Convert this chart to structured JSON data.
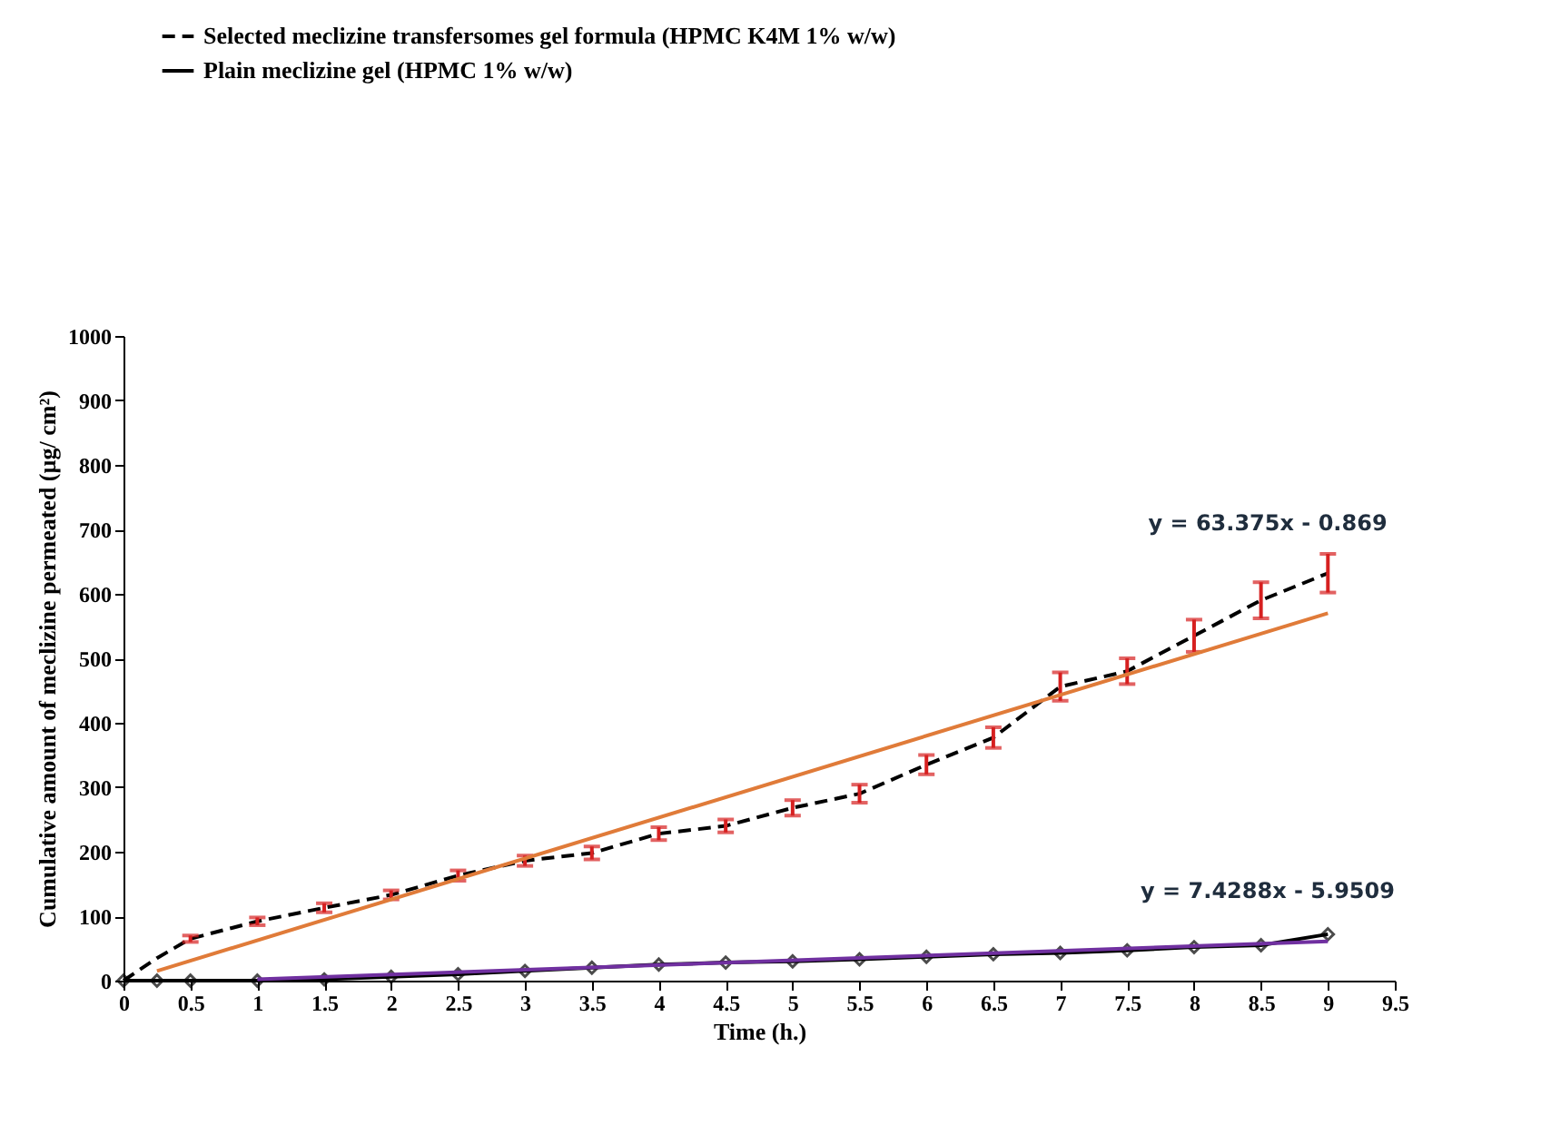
{
  "chart_data": {
    "type": "line",
    "xlabel": "Time (h.)",
    "ylabel": "Cumulative amount of meclizine permeated (µg/ cm²)",
    "x": [
      0,
      0.25,
      0.5,
      1,
      1.5,
      2,
      2.5,
      3,
      3.5,
      4,
      4.5,
      5,
      5.5,
      6,
      6.5,
      7,
      7.5,
      8,
      8.5,
      9
    ],
    "series": [
      {
        "name": "Selected meclizine transfersomes gel formula  (HPMC K4M 1% w/w)",
        "color": "#000000",
        "line_style": "dashed",
        "marker": "none",
        "values": [
          0,
          35,
          65,
          92,
          113,
          133,
          163,
          186,
          198,
          228,
          240,
          268,
          290,
          335,
          377,
          456,
          480,
          535,
          590,
          632
        ],
        "errors": [
          null,
          null,
          5,
          6,
          7,
          7,
          8,
          8,
          10,
          10,
          10,
          12,
          14,
          15,
          16,
          22,
          20,
          25,
          28,
          30
        ]
      },
      {
        "name": "Plain meclizine gel (HPMC 1% w/w)",
        "color": "#000000",
        "line_style": "solid",
        "marker": "diamond",
        "values": [
          0,
          0,
          0,
          0,
          2,
          6,
          10,
          15,
          20,
          25,
          28,
          30,
          33,
          37,
          41,
          43,
          47,
          52,
          55,
          72
        ]
      },
      {
        "type": "line",
        "color": "#e07b39",
        "line_style": "solid",
        "marker": "none",
        "x": [
          0.25,
          9
        ],
        "values": [
          15,
          570
        ]
      },
      {
        "type": "line",
        "color": "#7030a0",
        "line_style": "solid",
        "marker": "none",
        "x": [
          1,
          9
        ],
        "values": [
          2,
          61
        ]
      }
    ],
    "xlim": [
      0,
      9.5
    ],
    "xticks": [
      0,
      0.5,
      1,
      1.5,
      2,
      2.5,
      3,
      3.5,
      4,
      4.5,
      5,
      5.5,
      6,
      6.5,
      7,
      7.5,
      8,
      8.5,
      9,
      9.5
    ],
    "ylim": [
      0,
      1000
    ],
    "yticks": [
      0,
      100,
      200,
      300,
      400,
      500,
      600,
      700,
      800,
      900,
      1000
    ],
    "grid": false,
    "legend": "top left",
    "annotations": [
      "y = 63.375x - 0.869",
      "y = 7.4288x - 5.9509"
    ]
  }
}
